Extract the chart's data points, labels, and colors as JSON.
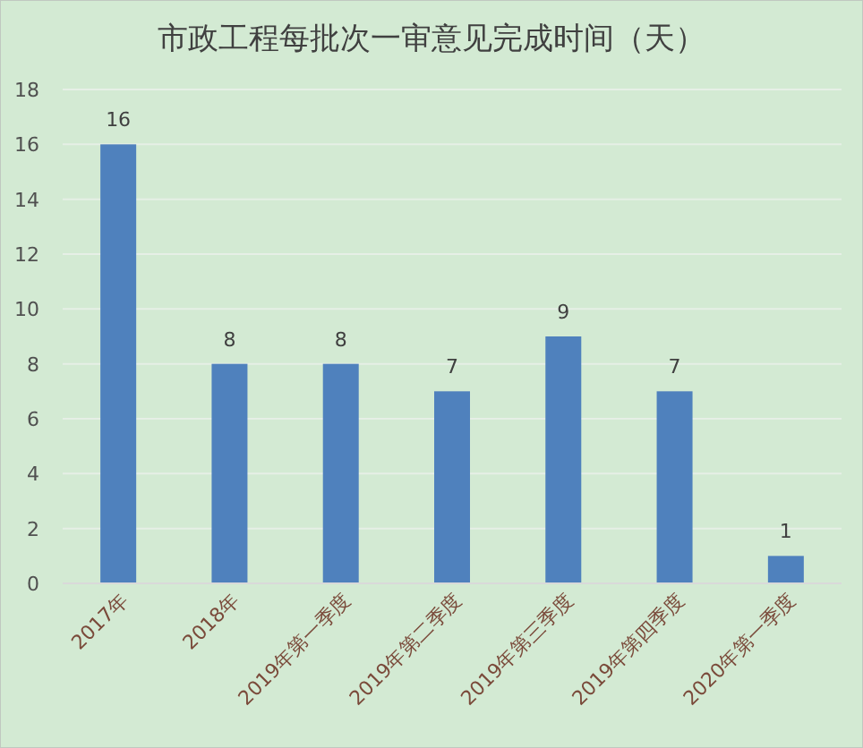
{
  "chart_data": {
    "type": "bar",
    "title": "市政工程每批次一审意见完成时间（天）",
    "categories": [
      "2017年",
      "2018年",
      "2019年第一季度",
      "2019年第二季度",
      "2019年第三季度",
      "2019年第四季度",
      "2020年第一季度"
    ],
    "values": [
      16,
      8,
      8,
      7,
      9,
      7,
      1
    ],
    "color": "#4f81bd",
    "ylim": [
      0,
      18
    ],
    "yticks": [
      0,
      2,
      4,
      6,
      8,
      10,
      12,
      14,
      16,
      18
    ],
    "grid": "y",
    "data_labels": true
  }
}
